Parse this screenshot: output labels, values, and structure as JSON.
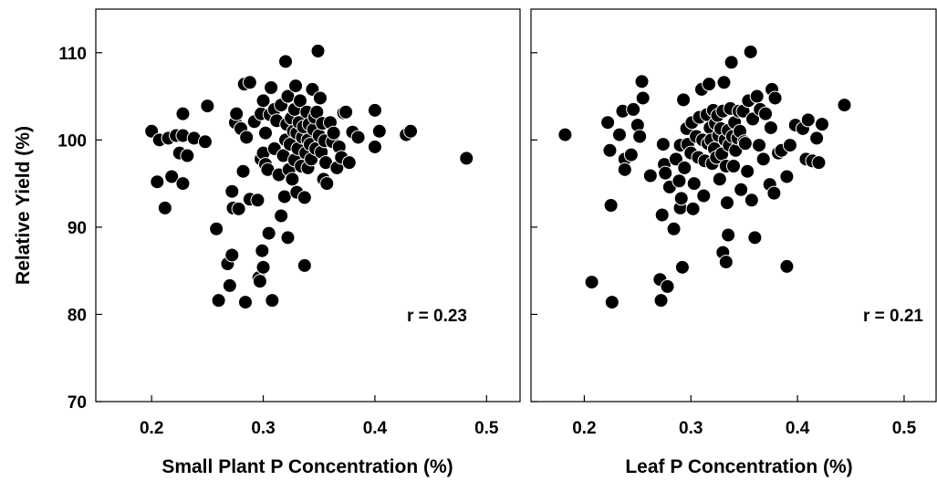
{
  "chart_data": [
    {
      "type": "scatter",
      "xlabel": "Small Plant P Concentration (%)",
      "ylabel": "Relative Yield (%)",
      "xlim": [
        0.15,
        0.53
      ],
      "ylim": [
        70,
        115
      ],
      "xticks": [
        0.2,
        0.3,
        0.4,
        0.5
      ],
      "yticks": [
        70,
        80,
        90,
        100,
        110
      ],
      "xtick_labels": [
        "0.2",
        "0.3",
        "0.4",
        "0.5"
      ],
      "ytick_labels": [
        "70",
        "80",
        "90",
        "100",
        "110"
      ],
      "annotation": "r = 0.23",
      "grid": false,
      "points": [
        [
          0.2,
          101.0
        ],
        [
          0.205,
          95.2
        ],
        [
          0.207,
          100.0
        ],
        [
          0.212,
          92.2
        ],
        [
          0.215,
          100.2
        ],
        [
          0.218,
          95.8
        ],
        [
          0.222,
          100.5
        ],
        [
          0.225,
          98.5
        ],
        [
          0.228,
          103.0
        ],
        [
          0.228,
          100.5
        ],
        [
          0.228,
          95.0
        ],
        [
          0.232,
          98.2
        ],
        [
          0.238,
          100.2
        ],
        [
          0.248,
          99.8
        ],
        [
          0.25,
          103.9
        ],
        [
          0.258,
          89.8
        ],
        [
          0.26,
          81.6
        ],
        [
          0.268,
          85.8
        ],
        [
          0.27,
          83.3
        ],
        [
          0.272,
          86.8
        ],
        [
          0.272,
          94.1
        ],
        [
          0.273,
          92.2
        ],
        [
          0.275,
          102.0
        ],
        [
          0.276,
          103.0
        ],
        [
          0.278,
          92.1
        ],
        [
          0.28,
          101.3
        ],
        [
          0.282,
          96.4
        ],
        [
          0.283,
          106.4
        ],
        [
          0.284,
          81.4
        ],
        [
          0.285,
          100.3
        ],
        [
          0.288,
          106.6
        ],
        [
          0.288,
          93.2
        ],
        [
          0.292,
          102.1
        ],
        [
          0.295,
          93.1
        ],
        [
          0.296,
          84.2
        ],
        [
          0.297,
          83.8
        ],
        [
          0.298,
          103.0
        ],
        [
          0.298,
          97.8
        ],
        [
          0.299,
          87.3
        ],
        [
          0.3,
          104.5
        ],
        [
          0.3,
          98.5
        ],
        [
          0.3,
          85.4
        ],
        [
          0.302,
          100.8
        ],
        [
          0.302,
          97.2
        ],
        [
          0.304,
          96.6
        ],
        [
          0.305,
          89.3
        ],
        [
          0.306,
          102.9
        ],
        [
          0.307,
          106.0
        ],
        [
          0.308,
          81.6
        ],
        [
          0.31,
          103.5
        ],
        [
          0.31,
          99.0
        ],
        [
          0.312,
          102.2
        ],
        [
          0.314,
          96.0
        ],
        [
          0.316,
          104.0
        ],
        [
          0.316,
          91.3
        ],
        [
          0.318,
          98.2
        ],
        [
          0.319,
          93.5
        ],
        [
          0.32,
          100.0
        ],
        [
          0.32,
          109.0
        ],
        [
          0.321,
          101.8
        ],
        [
          0.322,
          105.0
        ],
        [
          0.322,
          88.8
        ],
        [
          0.323,
          96.6
        ],
        [
          0.324,
          99.5
        ],
        [
          0.325,
          102.5
        ],
        [
          0.326,
          95.5
        ],
        [
          0.327,
          101.0
        ],
        [
          0.328,
          103.5
        ],
        [
          0.328,
          97.7
        ],
        [
          0.329,
          106.2
        ],
        [
          0.33,
          100.8
        ],
        [
          0.33,
          94.0
        ],
        [
          0.331,
          99.0
        ],
        [
          0.332,
          102.0
        ],
        [
          0.333,
          104.5
        ],
        [
          0.334,
          97.0
        ],
        [
          0.335,
          100.3
        ],
        [
          0.336,
          101.5
        ],
        [
          0.337,
          93.4
        ],
        [
          0.337,
          85.6
        ],
        [
          0.338,
          98.5
        ],
        [
          0.339,
          103.2
        ],
        [
          0.34,
          100.0
        ],
        [
          0.34,
          96.8
        ],
        [
          0.341,
          101.8
        ],
        [
          0.342,
          99.5
        ],
        [
          0.343,
          97.8
        ],
        [
          0.344,
          105.8
        ],
        [
          0.345,
          101.2
        ],
        [
          0.346,
          102.6
        ],
        [
          0.347,
          99.0
        ],
        [
          0.348,
          103.2
        ],
        [
          0.349,
          110.2
        ],
        [
          0.35,
          100.5
        ],
        [
          0.351,
          104.8
        ],
        [
          0.352,
          98.6
        ],
        [
          0.353,
          101.9
        ],
        [
          0.354,
          95.5
        ],
        [
          0.355,
          99.9
        ],
        [
          0.356,
          97.4
        ],
        [
          0.357,
          95.0
        ],
        [
          0.36,
          102.0
        ],
        [
          0.362,
          99.8
        ],
        [
          0.363,
          100.8
        ],
        [
          0.366,
          96.8
        ],
        [
          0.368,
          99.2
        ],
        [
          0.37,
          98.0
        ],
        [
          0.372,
          103.1
        ],
        [
          0.374,
          103.2
        ],
        [
          0.377,
          97.4
        ],
        [
          0.38,
          100.9
        ],
        [
          0.385,
          100.3
        ],
        [
          0.4,
          103.4
        ],
        [
          0.4,
          99.2
        ],
        [
          0.404,
          101.0
        ],
        [
          0.428,
          100.6
        ],
        [
          0.432,
          101.0
        ],
        [
          0.482,
          97.9
        ]
      ]
    },
    {
      "type": "scatter",
      "xlabel": "Leaf P Concentration (%)",
      "ylabel": "",
      "xlim": [
        0.15,
        0.53
      ],
      "ylim": [
        70,
        115
      ],
      "xticks": [
        0.2,
        0.3,
        0.4,
        0.5
      ],
      "yticks": [
        70,
        80,
        90,
        100,
        110
      ],
      "xtick_labels": [
        "0.2",
        "0.3",
        "0.4",
        "0.5"
      ],
      "annotation": "r = 0.21",
      "grid": false,
      "points": [
        [
          0.182,
          100.6
        ],
        [
          0.207,
          83.7
        ],
        [
          0.222,
          102.0
        ],
        [
          0.224,
          98.8
        ],
        [
          0.225,
          92.5
        ],
        [
          0.226,
          81.4
        ],
        [
          0.233,
          100.6
        ],
        [
          0.236,
          103.3
        ],
        [
          0.238,
          97.8
        ],
        [
          0.238,
          96.6
        ],
        [
          0.244,
          98.3
        ],
        [
          0.246,
          103.5
        ],
        [
          0.25,
          101.7
        ],
        [
          0.252,
          100.4
        ],
        [
          0.254,
          106.7
        ],
        [
          0.255,
          104.8
        ],
        [
          0.262,
          95.9
        ],
        [
          0.271,
          84.0
        ],
        [
          0.272,
          81.6
        ],
        [
          0.273,
          91.4
        ],
        [
          0.274,
          99.5
        ],
        [
          0.275,
          97.2
        ],
        [
          0.276,
          96.2
        ],
        [
          0.278,
          83.2
        ],
        [
          0.28,
          94.6
        ],
        [
          0.284,
          89.8
        ],
        [
          0.286,
          97.8
        ],
        [
          0.289,
          95.3
        ],
        [
          0.29,
          99.4
        ],
        [
          0.29,
          92.2
        ],
        [
          0.291,
          93.3
        ],
        [
          0.292,
          85.4
        ],
        [
          0.293,
          104.6
        ],
        [
          0.294,
          96.8
        ],
        [
          0.296,
          101.3
        ],
        [
          0.297,
          99.5
        ],
        [
          0.3,
          98.5
        ],
        [
          0.301,
          102.0
        ],
        [
          0.302,
          92.1
        ],
        [
          0.303,
          95.0
        ],
        [
          0.305,
          100.4
        ],
        [
          0.307,
          98.0
        ],
        [
          0.308,
          102.6
        ],
        [
          0.31,
          105.8
        ],
        [
          0.311,
          100.0
        ],
        [
          0.312,
          93.6
        ],
        [
          0.313,
          97.6
        ],
        [
          0.315,
          102.9
        ],
        [
          0.316,
          99.6
        ],
        [
          0.317,
          106.4
        ],
        [
          0.318,
          101.4
        ],
        [
          0.319,
          100.0
        ],
        [
          0.32,
          97.3
        ],
        [
          0.321,
          103.4
        ],
        [
          0.322,
          99.0
        ],
        [
          0.323,
          101.9
        ],
        [
          0.324,
          98.0
        ],
        [
          0.325,
          102.8
        ],
        [
          0.326,
          100.5
        ],
        [
          0.327,
          95.5
        ],
        [
          0.328,
          101.3
        ],
        [
          0.329,
          98.4
        ],
        [
          0.33,
          103.3
        ],
        [
          0.33,
          87.1
        ],
        [
          0.331,
          106.6
        ],
        [
          0.332,
          100.0
        ],
        [
          0.333,
          97.0
        ],
        [
          0.333,
          86.0
        ],
        [
          0.334,
          92.8
        ],
        [
          0.335,
          101.1
        ],
        [
          0.335,
          89.1
        ],
        [
          0.336,
          99.4
        ],
        [
          0.337,
          103.6
        ],
        [
          0.338,
          108.9
        ],
        [
          0.339,
          100.4
        ],
        [
          0.34,
          97.0
        ],
        [
          0.341,
          102.0
        ],
        [
          0.342,
          98.8
        ],
        [
          0.344,
          100.2
        ],
        [
          0.345,
          103.3
        ],
        [
          0.346,
          101.0
        ],
        [
          0.347,
          94.3
        ],
        [
          0.349,
          103.3
        ],
        [
          0.35,
          99.8
        ],
        [
          0.351,
          99.6
        ],
        [
          0.353,
          96.4
        ],
        [
          0.354,
          104.5
        ],
        [
          0.356,
          110.1
        ],
        [
          0.357,
          93.1
        ],
        [
          0.358,
          102.4
        ],
        [
          0.36,
          88.8
        ],
        [
          0.362,
          105.0
        ],
        [
          0.364,
          99.4
        ],
        [
          0.365,
          103.5
        ],
        [
          0.368,
          97.8
        ],
        [
          0.37,
          103.0
        ],
        [
          0.374,
          94.9
        ],
        [
          0.375,
          101.4
        ],
        [
          0.376,
          105.8
        ],
        [
          0.378,
          93.9
        ],
        [
          0.379,
          104.8
        ],
        [
          0.382,
          98.5
        ],
        [
          0.385,
          98.8
        ],
        [
          0.39,
          95.8
        ],
        [
          0.39,
          85.5
        ],
        [
          0.393,
          99.4
        ],
        [
          0.398,
          101.7
        ],
        [
          0.405,
          101.3
        ],
        [
          0.408,
          97.8
        ],
        [
          0.41,
          102.3
        ],
        [
          0.414,
          97.6
        ],
        [
          0.418,
          100.2
        ],
        [
          0.42,
          97.4
        ],
        [
          0.423,
          101.8
        ],
        [
          0.444,
          104.0
        ]
      ]
    }
  ]
}
